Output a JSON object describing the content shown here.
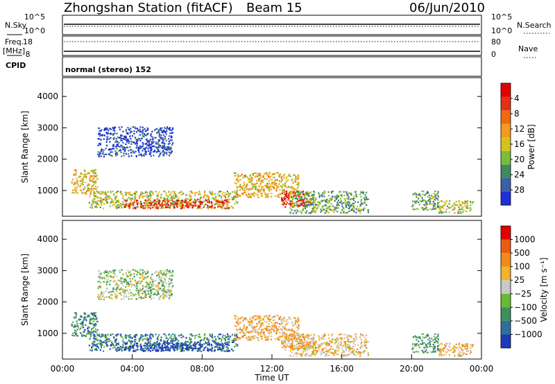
{
  "header": {
    "station": "Zhongshan Station (fitACF)",
    "beam": "Beam 15",
    "date": "06/Jun/2010"
  },
  "status_panels": {
    "nsky_label": "N.Sky",
    "nsky_ticks": [
      "10^5",
      "10^0"
    ],
    "nsearch_label": "N.Search",
    "nsearch_ticks": [
      "10^5",
      "10^0"
    ],
    "freq_label": "Freq.",
    "freq_unit": "[MHz]",
    "freq_ticks": [
      "18",
      "8"
    ],
    "nave_label": "Nave",
    "nave_ticks": [
      "80",
      "0"
    ],
    "cpid_label": "CPID",
    "cpid_text": "normal (stereo) 152"
  },
  "chart_data": [
    {
      "type": "heatmap",
      "name": "power",
      "ylabel": "Slant Range [km]",
      "ylim": [
        180,
        4600
      ],
      "yticks": [
        "1000",
        "2000",
        "3000",
        "4000"
      ],
      "xlim": [
        0,
        24
      ],
      "colorbar_label": "Power [dB]",
      "colorbar_ticks": [
        "4",
        "8",
        "12",
        "16",
        "20",
        "24",
        "28"
      ],
      "colorbar_colors": [
        "#1d2fd9",
        "#3c5fa8",
        "#3f8a5f",
        "#7bbd3a",
        "#d8c21a",
        "#f39a1e",
        "#ee6a10",
        "#e53018",
        "#e10000"
      ],
      "regions": [
        {
          "t": [
            2.0,
            6.3
          ],
          "r": [
            2100,
            3050
          ],
          "level": 0.1
        },
        {
          "t": [
            0.5,
            2.0
          ],
          "r": [
            900,
            1700
          ],
          "level": 0.55
        },
        {
          "t": [
            1.5,
            10.0
          ],
          "r": [
            450,
            1000
          ],
          "level": 0.45
        },
        {
          "t": [
            3.5,
            9.5
          ],
          "r": [
            450,
            720
          ],
          "level": 0.85
        },
        {
          "t": [
            9.8,
            13.5
          ],
          "r": [
            800,
            1600
          ],
          "level": 0.55
        },
        {
          "t": [
            12.5,
            14.2
          ],
          "r": [
            500,
            1000
          ],
          "level": 0.9
        },
        {
          "t": [
            13.0,
            17.5
          ],
          "r": [
            300,
            1000
          ],
          "level": 0.35
        },
        {
          "t": [
            21.5,
            23.5
          ],
          "r": [
            300,
            700
          ],
          "level": 0.45
        },
        {
          "t": [
            20.0,
            21.5
          ],
          "r": [
            400,
            1000
          ],
          "level": 0.3
        }
      ]
    },
    {
      "type": "heatmap",
      "name": "velocity",
      "ylabel": "Slant Range [km]",
      "ylim": [
        180,
        4600
      ],
      "yticks": [
        "1000",
        "2000",
        "3000",
        "4000"
      ],
      "xlabel": "Time UT",
      "xlim": [
        0,
        24
      ],
      "xticks": [
        "00:00",
        "04:00",
        "08:00",
        "12:00",
        "16:00",
        "20:00",
        "00:00"
      ],
      "colorbar_label": "Velocity [m s⁻¹]",
      "colorbar_ticks": [
        "1000",
        "500",
        "100",
        "25",
        "−25",
        "−100",
        "−500",
        "−1000"
      ],
      "colorbar_colors": [
        "#1f3ab8",
        "#2f6f9e",
        "#3c8f5e",
        "#66bb33",
        "#c8c8c8",
        "#f3b32a",
        "#f08a1a",
        "#ee5a14",
        "#e00000"
      ],
      "regions": [
        {
          "t": [
            2.0,
            6.3
          ],
          "r": [
            2100,
            3050
          ],
          "level": 0.44
        },
        {
          "t": [
            0.5,
            2.0
          ],
          "r": [
            900,
            1700
          ],
          "level": 0.25
        },
        {
          "t": [
            1.5,
            10.0
          ],
          "r": [
            450,
            1000
          ],
          "level": 0.2
        },
        {
          "t": [
            3.5,
            9.5
          ],
          "r": [
            450,
            720
          ],
          "level": 0.05
        },
        {
          "t": [
            9.8,
            13.5
          ],
          "r": [
            800,
            1600
          ],
          "level": 0.62
        },
        {
          "t": [
            12.5,
            14.2
          ],
          "r": [
            500,
            1000
          ],
          "level": 0.65
        },
        {
          "t": [
            13.0,
            17.5
          ],
          "r": [
            300,
            1000
          ],
          "level": 0.6
        },
        {
          "t": [
            21.5,
            23.5
          ],
          "r": [
            300,
            700
          ],
          "level": 0.62
        },
        {
          "t": [
            20.0,
            21.5
          ],
          "r": [
            400,
            1000
          ],
          "level": 0.3
        }
      ]
    }
  ]
}
